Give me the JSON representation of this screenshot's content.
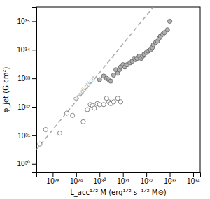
{
  "chart_data": {
    "type": "scatter",
    "xlabel": "L_acc¹ᐟ² M (erg¹ᐟ² s⁻¹ᐟ² M⊙)",
    "ylabel": "φ_jet (G cm²)",
    "log": true,
    "xlim": [
      1.9952623149688795e+27,
      1.9952623149688795e+34
    ],
    "ylim": [
      5.011872336272722e+29,
      3.1622776601683795e+35
    ],
    "xticks": [
      {
        "value": 1e+28,
        "label": "10²⁸"
      },
      {
        "value": 1e+29,
        "label": "10²⁹"
      },
      {
        "value": 1e+30,
        "label": "10³⁰"
      },
      {
        "value": 1e+31,
        "label": "10³¹"
      },
      {
        "value": 1e+32,
        "label": "10³²"
      },
      {
        "value": 1e+33,
        "label": "10³³"
      },
      {
        "value": 1e+34,
        "label": "10³⁴"
      }
    ],
    "yticks": [
      {
        "value": 1e+30,
        "label": "10³⁰"
      },
      {
        "value": 1e+31,
        "label": "10³¹"
      },
      {
        "value": 1e+32,
        "label": "10³²"
      },
      {
        "value": 1e+33,
        "label": "10³³"
      },
      {
        "value": 1e+34,
        "label": "10³⁴"
      },
      {
        "value": 1e+35,
        "label": "10³⁵"
      }
    ],
    "series": [
      {
        "name": "Prediction",
        "type": "line",
        "line_style": "dashed",
        "color": "#aaaaaa",
        "x": [
          1.9952623149688795e+27,
          1.9952623149688795e+32
        ],
        "values": [
          3.1622776601683795e+30,
          3.1622776601683795e+35
        ]
      },
      {
        "type": "scatter",
        "marker": "circle",
        "color": "#ffffff",
        "x": [
          2.8e+27,
          5e+27,
          2e+28,
          4e+28,
          7e+28,
          2e+29,
          3e+29,
          4e+29,
          5e+29,
          6e+29,
          8e+29,
          1e+30,
          1.5e+30,
          2e+30,
          2.5e+30,
          3e+30,
          4e+30,
          6e+30,
          8e+30
        ],
        "values": [
          5e+30,
          1.6e+31,
          1.2e+31,
          6e+31,
          5e+31,
          3e+31,
          8e+31,
          1.2e+32,
          1.1e+32,
          9e+31,
          1.3e+32,
          1.2e+32,
          1.2e+32,
          2e+32,
          1.5e+32,
          1.3e+32,
          1.5e+32,
          2e+32,
          1.5e+32
        ]
      },
      {
        "type": "scatter",
        "marker": "circle",
        "color": "#b0b0b0",
        "x": [
          1e+30,
          1.5e+30,
          2e+30,
          2.5e+30,
          3e+30,
          4e+30,
          5e+30,
          6e+30,
          7e+30,
          8e+30,
          1e+31,
          1.2e+31,
          1.5e+31,
          2e+31,
          2.5e+31,
          3e+31,
          3.5e+31,
          4e+31,
          5e+31,
          6e+31,
          7e+31,
          8e+31,
          1e+32,
          1.2e+32,
          1.5e+32,
          1.8e+32,
          2e+32,
          2.5e+32,
          3e+32,
          3.5e+32,
          4e+32,
          5e+32,
          6e+32,
          8e+32,
          1e+33
        ],
        "values": [
          9e+32,
          1.2e+33,
          1e+33,
          9e+32,
          8e+32,
          1.3e+33,
          2e+33,
          1.5e+33,
          2e+33,
          2.5e+33,
          3e+33,
          2.5e+33,
          3e+33,
          3.5e+33,
          4e+33,
          5e+33,
          4.5e+33,
          5e+33,
          6e+33,
          5e+33,
          6e+33,
          7e+33,
          8e+33,
          9e+33,
          1e+34,
          1.2e+34,
          1.5e+34,
          1.8e+34,
          2e+34,
          2.5e+34,
          3e+34,
          3.5e+34,
          4e+34,
          5e+34,
          1e+35
        ]
      }
    ]
  }
}
